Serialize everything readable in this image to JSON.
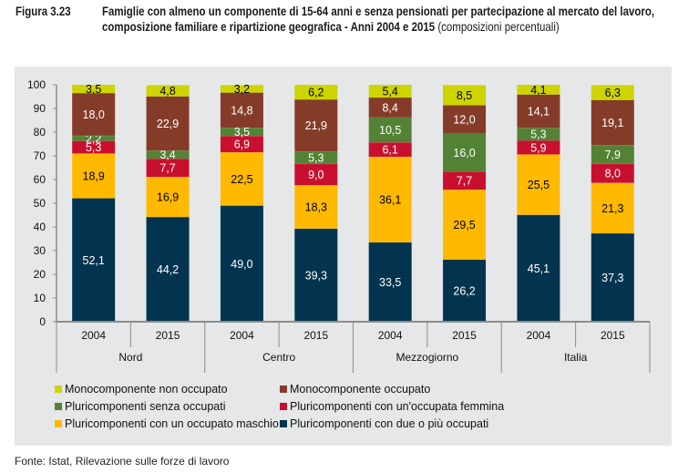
{
  "figure": {
    "label": "Figura 3.23",
    "title_bold": "Famiglie con almeno un componente di 15-64 anni e senza pensionati per partecipazione al mercato del lavoro, composizione familiare e ripartizione geografica - Anni 2004 e 2015",
    "title_normal": " (composizioni percentuali)",
    "source": "Fonte: Istat, Rilevazione sulle forze di lavoro"
  },
  "chart_data": {
    "type": "bar",
    "stacked": true,
    "title": "Famiglie con almeno un componente di 15-64 anni e senza pensionati per partecipazione al mercato del lavoro, composizione familiare e ripartizione geografica - Anni 2004 e 2015 (composizioni percentuali)",
    "xlabel": "",
    "ylabel": "",
    "ylim": [
      0,
      100
    ],
    "yticks": [
      0,
      10,
      20,
      30,
      40,
      50,
      60,
      70,
      80,
      90,
      100
    ],
    "groups": [
      "Nord",
      "Centro",
      "Mezzogiorno",
      "Italia"
    ],
    "categories": [
      "2004",
      "2015",
      "2004",
      "2015",
      "2004",
      "2015",
      "2004",
      "2015"
    ],
    "legend_position": "bottom",
    "grid": false,
    "series": [
      {
        "name": "Pluricomponenti con due o più occupati",
        "color": "#02344f",
        "label_color": "#ffffff",
        "values": [
          52.1,
          44.2,
          49.0,
          39.3,
          33.5,
          26.2,
          45.1,
          37.3
        ],
        "labels": [
          "52,1",
          "44,2",
          "49,0",
          "39,3",
          "33,5",
          "26,2",
          "45,1",
          "37,3"
        ]
      },
      {
        "name": "Pluricomponenti con un occupato maschio",
        "color": "#ffb900",
        "label_color": "#000000",
        "values": [
          18.9,
          16.9,
          22.5,
          18.3,
          36.1,
          29.5,
          25.5,
          21.3
        ],
        "labels": [
          "18,9",
          "16,9",
          "22,5",
          "18,3",
          "36,1",
          "29,5",
          "25,5",
          "21,3"
        ]
      },
      {
        "name": "Pluricomponenti con un'occupata femmina",
        "color": "#c8102e",
        "label_color": "#ffffff",
        "values": [
          5.3,
          7.7,
          6.9,
          9.0,
          6.1,
          7.7,
          5.9,
          8.0
        ],
        "labels": [
          "5,3",
          "7,7",
          "6,9",
          "9,0",
          "6,1",
          "7,7",
          "5,9",
          "8,0"
        ]
      },
      {
        "name": "Pluricomponenti senza occupati",
        "color": "#548235",
        "label_color": "#ffffff",
        "values": [
          2.2,
          3.4,
          3.5,
          5.3,
          10.5,
          16.0,
          5.3,
          7.9
        ],
        "labels": [
          "2,2",
          "3,4",
          "3,5",
          "5,3",
          "10,5",
          "16,0",
          "5,3",
          "7,9"
        ]
      },
      {
        "name": "Monocomponente occupato",
        "color": "#843c29",
        "label_color": "#ffffff",
        "values": [
          18.0,
          22.9,
          14.8,
          21.9,
          8.4,
          12.0,
          14.1,
          19.1
        ],
        "labels": [
          "18,0",
          "22,9",
          "14,8",
          "21,9",
          "8,4",
          "12,0",
          "14,1",
          "19,1"
        ]
      },
      {
        "name": "Monocomponente non occupato",
        "color": "#cdd400",
        "label_color": "#000000",
        "values": [
          3.5,
          4.8,
          3.2,
          6.2,
          5.4,
          8.5,
          4.1,
          6.3
        ],
        "labels": [
          "3,5",
          "4,8",
          "3,2",
          "6,2",
          "5,4",
          "8,5",
          "4,1",
          "6,3"
        ]
      }
    ],
    "legend": [
      {
        "name": "Monocomponente non occupato",
        "color": "#cdd400"
      },
      {
        "name": "Monocomponente occupato",
        "color": "#843c29"
      },
      {
        "name": "Pluricomponenti senza occupati",
        "color": "#548235"
      },
      {
        "name": "Pluricomponenti con un'occupata femmina",
        "color": "#c8102e"
      },
      {
        "name": "Pluricomponenti con un occupato maschio",
        "color": "#ffb900"
      },
      {
        "name": "Pluricomponenti con due o più occupati",
        "color": "#02344f"
      }
    ]
  }
}
